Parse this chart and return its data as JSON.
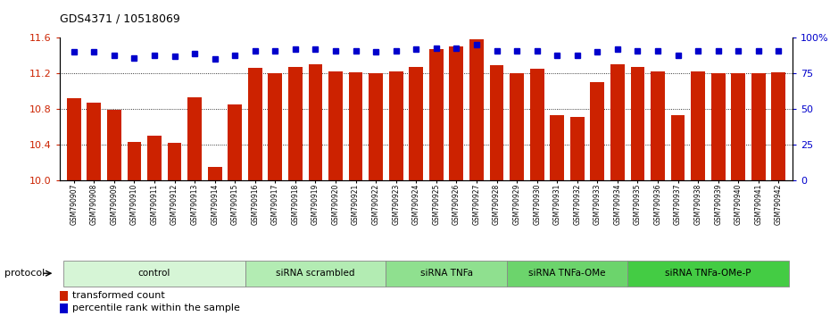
{
  "title": "GDS4371 / 10518069",
  "samples": [
    "GSM790907",
    "GSM790908",
    "GSM790909",
    "GSM790910",
    "GSM790911",
    "GSM790912",
    "GSM790913",
    "GSM790914",
    "GSM790915",
    "GSM790916",
    "GSM790917",
    "GSM790918",
    "GSM790919",
    "GSM790920",
    "GSM790921",
    "GSM790922",
    "GSM790923",
    "GSM790924",
    "GSM790925",
    "GSM790926",
    "GSM790927",
    "GSM790928",
    "GSM790929",
    "GSM790930",
    "GSM790931",
    "GSM790932",
    "GSM790933",
    "GSM790934",
    "GSM790935",
    "GSM790936",
    "GSM790937",
    "GSM790938",
    "GSM790939",
    "GSM790940",
    "GSM790941",
    "GSM790942"
  ],
  "bar_values": [
    10.92,
    10.87,
    10.79,
    10.43,
    10.5,
    10.42,
    10.93,
    10.15,
    10.85,
    11.26,
    11.2,
    11.27,
    11.3,
    11.22,
    11.21,
    11.2,
    11.22,
    11.27,
    11.47,
    11.5,
    11.58,
    11.29,
    11.2,
    11.25,
    10.73,
    10.71,
    11.1,
    11.3,
    11.27,
    11.22,
    10.73,
    11.22,
    11.2,
    11.2,
    11.2,
    11.21
  ],
  "percentile_values": [
    90,
    90,
    88,
    86,
    88,
    87,
    89,
    85,
    88,
    91,
    91,
    92,
    92,
    91,
    91,
    90,
    91,
    92,
    93,
    93,
    95,
    91,
    91,
    91,
    88,
    88,
    90,
    92,
    91,
    91,
    88,
    91,
    91,
    91,
    91,
    91
  ],
  "groups": [
    {
      "label": "control",
      "start": 0,
      "end": 9,
      "color": "#d6f5d6"
    },
    {
      "label": "siRNA scrambled",
      "start": 9,
      "end": 16,
      "color": "#b3ecb3"
    },
    {
      "label": "siRNA TNFa",
      "start": 16,
      "end": 22,
      "color": "#8fe08f"
    },
    {
      "label": "siRNA TNFa-OMe",
      "start": 22,
      "end": 28,
      "color": "#6cd46c"
    },
    {
      "label": "siRNA TNFa-OMe-P",
      "start": 28,
      "end": 36,
      "color": "#44cc44"
    }
  ],
  "bar_color": "#cc2200",
  "percentile_color": "#0000cc",
  "ylim_left": [
    10.0,
    11.6
  ],
  "ylim_right": [
    0,
    100
  ],
  "yticks_left": [
    10.0,
    10.4,
    10.8,
    11.2,
    11.6
  ],
  "yticks_right": [
    0,
    25,
    50,
    75,
    100
  ],
  "ytick_labels_right": [
    "0",
    "25",
    "50",
    "75",
    "100%"
  ],
  "grid_values": [
    10.4,
    10.8,
    11.2
  ],
  "legend_bar_label": "transformed count",
  "legend_pct_label": "percentile rank within the sample",
  "protocol_label": "protocol"
}
